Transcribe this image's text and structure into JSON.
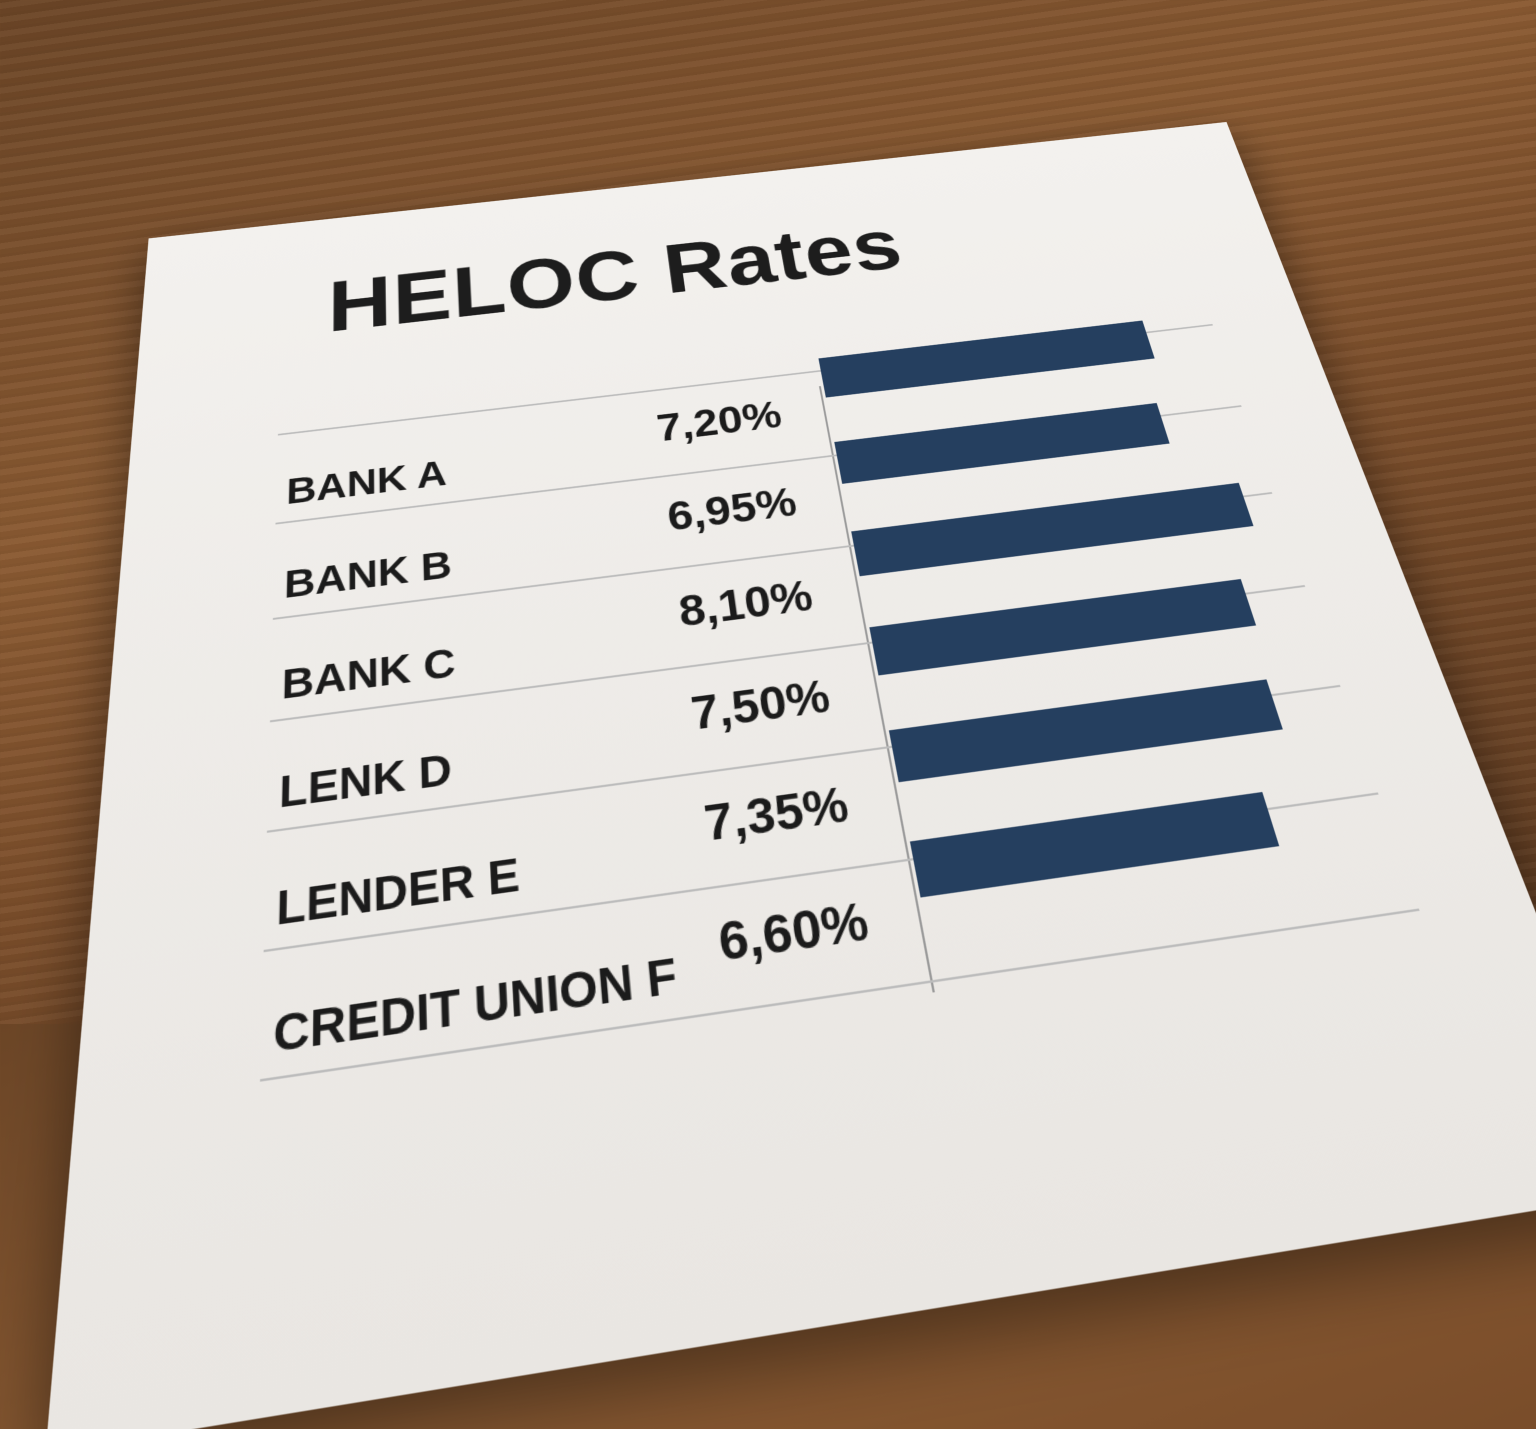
{
  "chart_data": {
    "type": "bar",
    "title": "HELOC Rates",
    "categories": [
      "BANK A",
      "BANK B",
      "BANK C",
      "LENK D",
      "LENDER E",
      "CREDIT UNION F"
    ],
    "value_labels": [
      "7,20%",
      "6,95%",
      "8,10%",
      "7,50%",
      "7,35%",
      "6,60%"
    ],
    "values": [
      7.2,
      6.95,
      8.1,
      7.5,
      7.35,
      6.6
    ],
    "unit": "%",
    "bar_color": "#253f5f",
    "orientation": "horizontal",
    "grid": true
  }
}
